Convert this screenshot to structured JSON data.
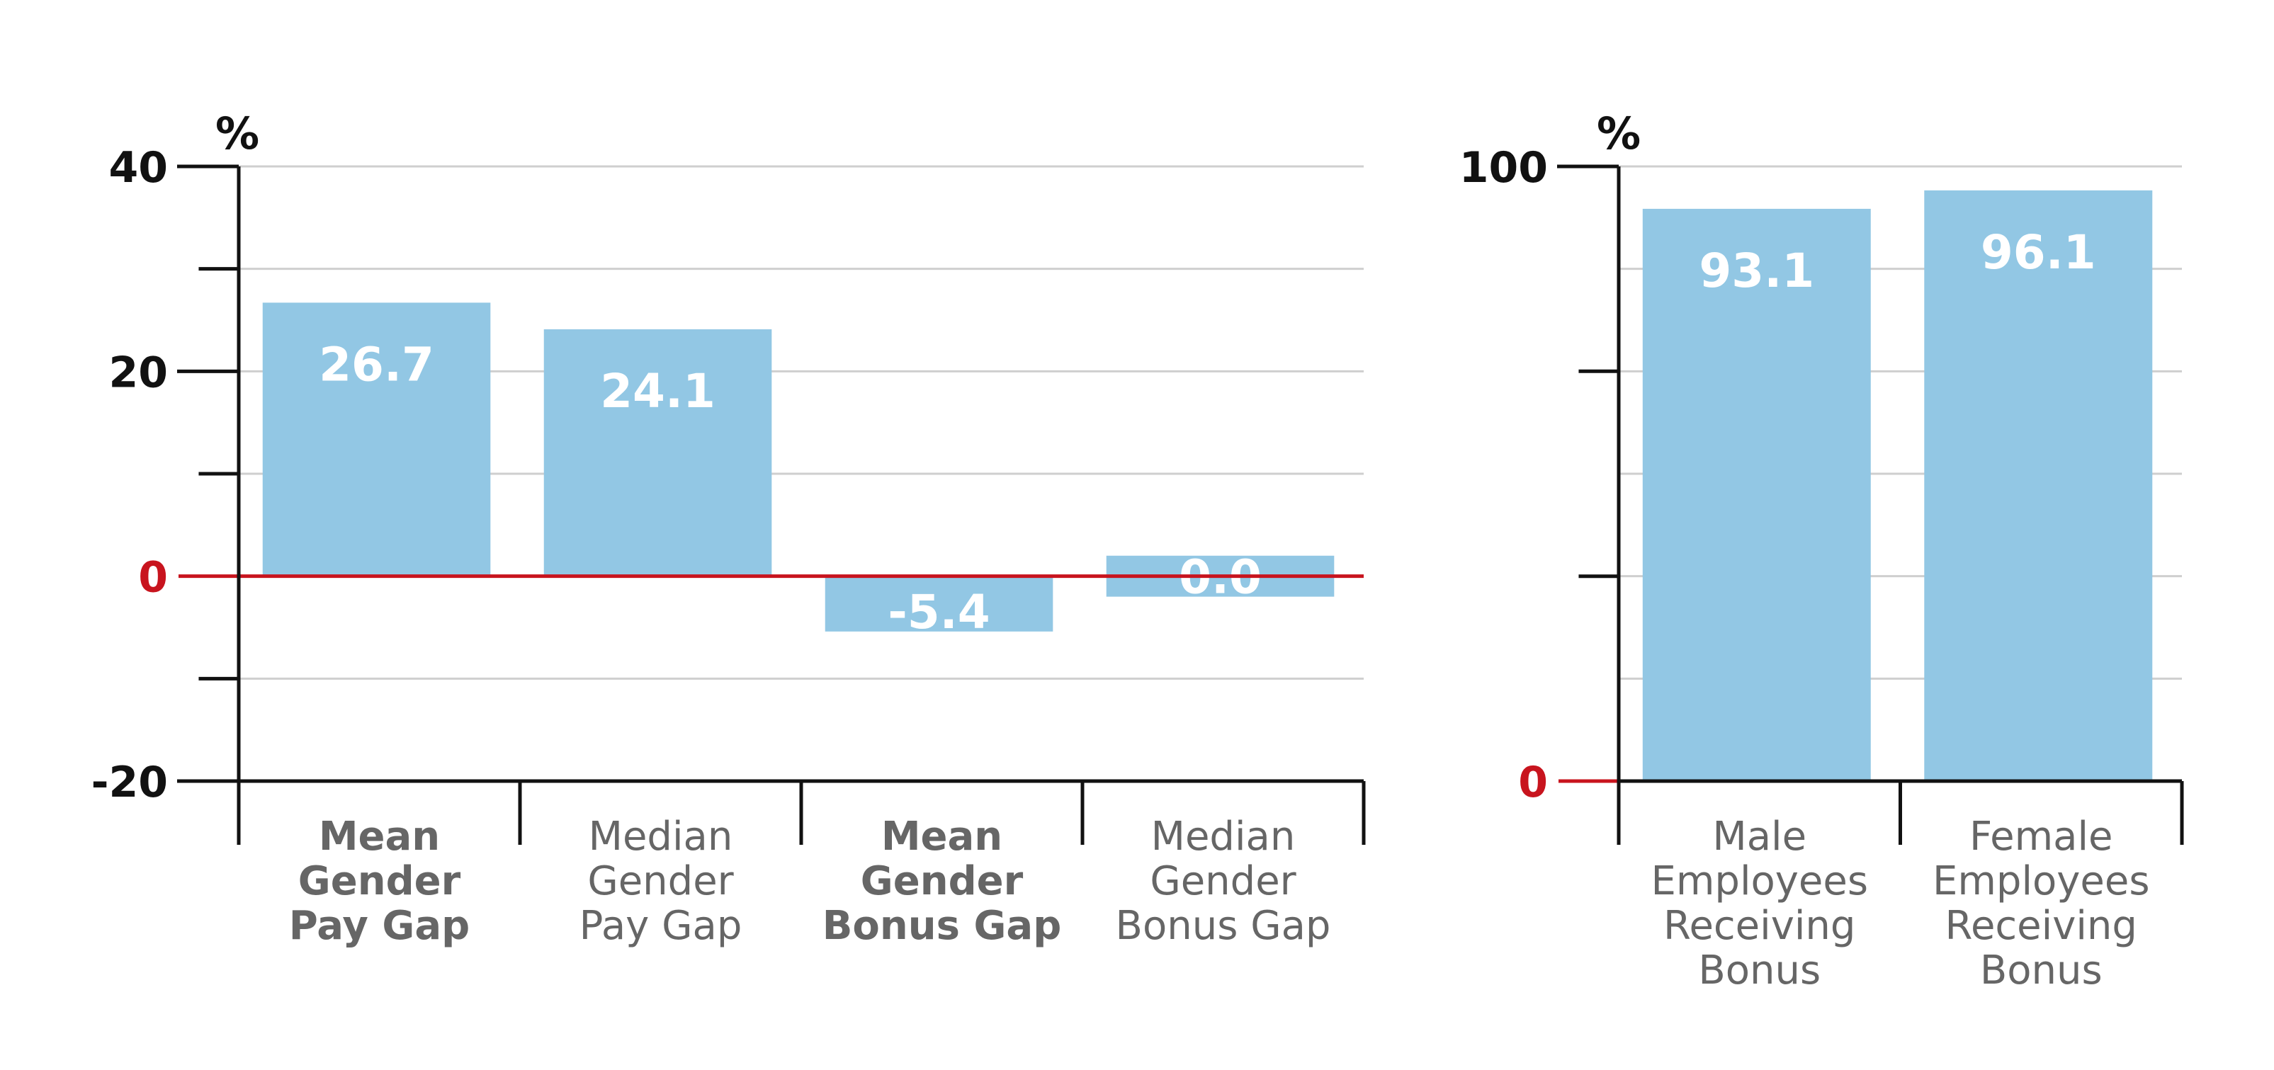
{
  "colors": {
    "bar": "#92c7e4",
    "zero_line": "#c8141e",
    "grid": "#cfcfcf",
    "axis": "#111111",
    "category_text": "#666666",
    "value_text": "#ffffff"
  },
  "chart_data": [
    {
      "type": "bar",
      "unit_label": "%",
      "categories": [
        {
          "lines": [
            "Mean",
            "Gender",
            "Pay Gap"
          ],
          "bold": true
        },
        {
          "lines": [
            "Median",
            "Gender",
            "Pay Gap"
          ],
          "bold": false
        },
        {
          "lines": [
            "Mean",
            "Gender",
            "Bonus Gap"
          ],
          "bold": true
        },
        {
          "lines": [
            "Median",
            "Gender",
            "Bonus Gap"
          ],
          "bold": false
        }
      ],
      "values": [
        26.7,
        24.1,
        -5.4,
        0.0
      ],
      "value_labels": [
        "26.7",
        "24.1",
        "-5.4",
        "0.0"
      ],
      "ylim": [
        -20,
        40
      ],
      "yticks_labeled": [
        "40",
        "20",
        "0",
        "-20"
      ],
      "ytick_values": [
        40,
        20,
        0,
        -20
      ],
      "minor_ticks": [
        30,
        10,
        -10
      ],
      "grid": true,
      "zero_line_color": "#c8141e",
      "note": ""
    },
    {
      "type": "bar",
      "unit_label": "%",
      "categories": [
        {
          "lines": [
            "Male",
            "Employees",
            "Receiving",
            "Bonus"
          ],
          "bold": false
        },
        {
          "lines": [
            "Female",
            "Employees",
            "Receiving",
            "Bonus"
          ],
          "bold": false
        }
      ],
      "values": [
        93.1,
        96.1
      ],
      "value_labels": [
        "93.1",
        "96.1"
      ],
      "ylim": [
        0,
        100
      ],
      "yticks_labeled": [
        "100",
        "0"
      ],
      "ytick_values": [
        100,
        0
      ],
      "minor_ticks": [
        50,
        66.67,
        33.33,
        83.33,
        16.67
      ],
      "grid": true,
      "zero_line_color": "#c8141e"
    }
  ]
}
